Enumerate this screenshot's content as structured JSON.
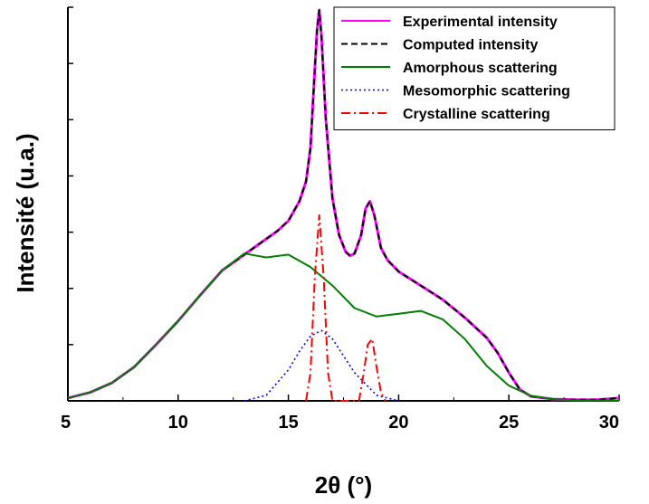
{
  "chart_data": {
    "type": "line",
    "xlabel": "2θ (°)",
    "ylabel": "Intensité (u.a.)",
    "xlim": [
      5,
      30
    ],
    "ylim": [
      0,
      7
    ],
    "xticks": [
      5,
      10,
      15,
      20,
      25,
      30
    ],
    "xtick_labels": [
      "5",
      "10",
      "15",
      "20",
      "25",
      "30"
    ],
    "y_tick_labels_shown": false,
    "grid": false,
    "legend_position": "top-right",
    "legend_frame": true,
    "series": [
      {
        "name": "Experimental intensity",
        "color": "#ff00ff",
        "style": "solid",
        "x": [
          5,
          6,
          7,
          8,
          9,
          10,
          11,
          12,
          13,
          14,
          14.5,
          15,
          15.5,
          15.8,
          16,
          16.2,
          16.3,
          16.4,
          16.5,
          16.7,
          17,
          17.3,
          17.6,
          17.8,
          18,
          18.3,
          18.5,
          18.7,
          18.9,
          19.2,
          19.5,
          20,
          21,
          22,
          23,
          24,
          24.5,
          25,
          25.5,
          26,
          27,
          28,
          29,
          30
        ],
        "y": [
          0.05,
          0.15,
          0.32,
          0.6,
          1.0,
          1.42,
          1.88,
          2.32,
          2.6,
          2.88,
          3.02,
          3.2,
          3.55,
          3.9,
          4.5,
          5.9,
          6.6,
          6.95,
          6.5,
          5.0,
          3.6,
          2.95,
          2.65,
          2.58,
          2.62,
          2.95,
          3.42,
          3.55,
          3.3,
          2.72,
          2.5,
          2.3,
          2.05,
          1.8,
          1.48,
          1.12,
          0.85,
          0.5,
          0.2,
          0.08,
          0.03,
          0.02,
          0.02,
          0.05
        ]
      },
      {
        "name": "Computed intensity",
        "color": "#000000",
        "style": "dashed",
        "x": [
          5,
          6,
          7,
          8,
          9,
          10,
          11,
          12,
          13,
          14,
          14.5,
          15,
          15.5,
          15.8,
          16,
          16.2,
          16.3,
          16.4,
          16.5,
          16.7,
          17,
          17.3,
          17.6,
          17.8,
          18,
          18.3,
          18.5,
          18.7,
          18.9,
          19.2,
          19.5,
          20,
          21,
          22,
          23,
          24,
          24.5,
          25,
          25.5,
          26,
          27,
          28,
          29,
          30
        ],
        "y": [
          0.05,
          0.15,
          0.32,
          0.6,
          1.0,
          1.42,
          1.88,
          2.32,
          2.6,
          2.88,
          3.02,
          3.2,
          3.55,
          3.9,
          4.5,
          5.9,
          6.6,
          6.95,
          6.5,
          5.0,
          3.6,
          2.95,
          2.65,
          2.58,
          2.62,
          2.95,
          3.42,
          3.55,
          3.3,
          2.72,
          2.5,
          2.3,
          2.05,
          1.8,
          1.48,
          1.12,
          0.85,
          0.5,
          0.2,
          0.08,
          0.03,
          0.02,
          0.02,
          0.05
        ]
      },
      {
        "name": "Amorphous scattering",
        "color": "#008000",
        "style": "solid",
        "x": [
          5,
          6,
          7,
          8,
          9,
          10,
          11,
          12,
          13,
          14,
          15,
          16,
          17,
          18,
          19,
          20,
          21,
          22,
          23,
          24,
          25,
          26,
          27,
          28,
          29,
          30
        ],
        "y": [
          0.05,
          0.15,
          0.32,
          0.6,
          1.0,
          1.42,
          1.88,
          2.32,
          2.62,
          2.55,
          2.6,
          2.38,
          2.05,
          1.65,
          1.5,
          1.55,
          1.6,
          1.45,
          1.1,
          0.62,
          0.27,
          0.09,
          0.03,
          0.01,
          0.01,
          0.0
        ]
      },
      {
        "name": "Mesomorphic scattering",
        "color": "#0000ff",
        "style": "dotted",
        "x": [
          13,
          14,
          15,
          15.5,
          16,
          16.5,
          17,
          17.5,
          18,
          19,
          20
        ],
        "y": [
          0.0,
          0.1,
          0.55,
          0.88,
          1.15,
          1.25,
          1.1,
          0.8,
          0.5,
          0.1,
          0.0
        ]
      },
      {
        "name": "Crystalline scattering",
        "color": "#ff0000",
        "style": "dashdot",
        "x": [
          15.8,
          16.0,
          16.2,
          16.4,
          16.6,
          16.8,
          17.0,
          18.2,
          18.4,
          18.6,
          18.8,
          19.0,
          19.2,
          19.4
        ],
        "y": [
          0.0,
          0.5,
          2.2,
          3.3,
          2.2,
          0.5,
          0.0,
          0.0,
          0.45,
          1.0,
          1.1,
          0.6,
          0.15,
          0.0
        ]
      }
    ]
  }
}
